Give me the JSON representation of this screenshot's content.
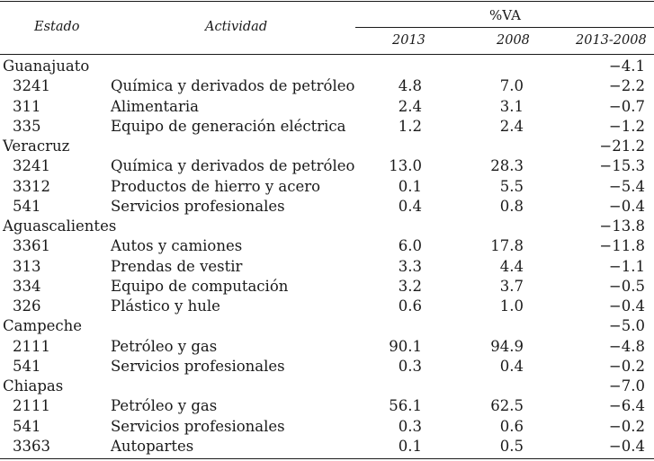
{
  "headers": {
    "estado": "Estado",
    "actividad": "Actividad",
    "va": "%VA",
    "y2013": "2013",
    "y2008": "2008",
    "diff": "2013-2008"
  },
  "groups": [
    {
      "state": "Guanajuato",
      "total": "−4.1",
      "rows": [
        {
          "code": "3241",
          "activity": "Química y derivados de petróleo",
          "v2013": "4.8",
          "v2008": "7.0",
          "diff": "−2.2"
        },
        {
          "code": "311",
          "activity": "Alimentaria",
          "v2013": "2.4",
          "v2008": "3.1",
          "diff": "−0.7"
        },
        {
          "code": "335",
          "activity": "Equipo de generación eléctrica",
          "v2013": "1.2",
          "v2008": "2.4",
          "diff": "−1.2"
        }
      ]
    },
    {
      "state": "Veracruz",
      "total": "−21.2",
      "rows": [
        {
          "code": "3241",
          "activity": "Química y derivados de petróleo",
          "v2013": "13.0",
          "v2008": "28.3",
          "diff": "−15.3"
        },
        {
          "code": "3312",
          "activity": "Productos de hierro y acero",
          "v2013": "0.1",
          "v2008": "5.5",
          "diff": "−5.4"
        },
        {
          "code": "541",
          "activity": "Servicios profesionales",
          "v2013": "0.4",
          "v2008": "0.8",
          "diff": "−0.4"
        }
      ]
    },
    {
      "state": "Aguascalientes",
      "total": "−13.8",
      "rows": [
        {
          "code": "3361",
          "activity": "Autos y camiones",
          "v2013": "6.0",
          "v2008": "17.8",
          "diff": "−11.8"
        },
        {
          "code": "313",
          "activity": "Prendas de vestir",
          "v2013": "3.3",
          "v2008": "4.4",
          "diff": "−1.1"
        },
        {
          "code": "334",
          "activity": "Equipo de computación",
          "v2013": "3.2",
          "v2008": "3.7",
          "diff": "−0.5"
        },
        {
          "code": "326",
          "activity": "Plástico y hule",
          "v2013": "0.6",
          "v2008": "1.0",
          "diff": "−0.4"
        }
      ]
    },
    {
      "state": "Campeche",
      "total": "−5.0",
      "rows": [
        {
          "code": "2111",
          "activity": "Petróleo y gas",
          "v2013": "90.1",
          "v2008": "94.9",
          "diff": "−4.8"
        },
        {
          "code": "541",
          "activity": "Servicios profesionales",
          "v2013": "0.3",
          "v2008": "0.4",
          "diff": "−0.2"
        }
      ]
    },
    {
      "state": "Chiapas",
      "total": "−7.0",
      "rows": [
        {
          "code": "2111",
          "activity": "Petróleo y gas",
          "v2013": "56.1",
          "v2008": "62.5",
          "diff": "−6.4"
        },
        {
          "code": "541",
          "activity": "Servicios profesionales",
          "v2013": "0.3",
          "v2008": "0.6",
          "diff": "−0.2"
        },
        {
          "code": "3363",
          "activity": "Autopartes",
          "v2013": "0.1",
          "v2008": "0.5",
          "diff": "−0.4"
        }
      ]
    }
  ]
}
